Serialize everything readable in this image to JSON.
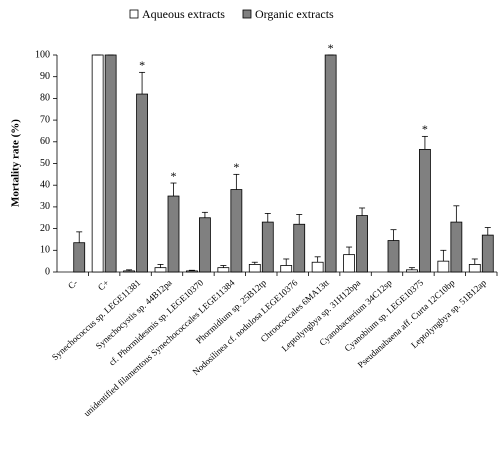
{
  "chart_data": {
    "type": "bar",
    "ylabel": "Mortality rate (%)",
    "categories": [
      "C-",
      "C+",
      "Synechococcus sp. LEGE11381",
      "Synechocystis sp. 44B12pa",
      "cf. Phormidesmis sp. LEGE10370",
      "unidentified filamentous Synechococcales LEGE11384",
      "Phormidium sp. 25B12tp",
      "Nodosilinea cf. nodulosa LEGE10376",
      "Chroococcales 6MA13tt",
      "Leptolyngbya sp. 31H12bpa",
      "Cyanobacterium 34C12sp",
      "Cyanobium sp. LEGE10375",
      "Pseudanabaena aff. Curta 12C10bp",
      "Leptolyngbya sp. 51B12ap"
    ],
    "series": [
      {
        "name": "Aqueous extracts",
        "color": "#ffffff",
        "values": [
          null,
          100,
          0.5,
          2,
          0.5,
          2,
          3.5,
          3,
          4.5,
          8,
          null,
          1,
          5,
          3.5
        ],
        "errors": [
          null,
          0,
          0.5,
          1.5,
          0.3,
          1,
          1,
          3,
          2.5,
          3.5,
          null,
          1,
          5,
          2.5
        ]
      },
      {
        "name": "Organic extracts",
        "color": "#808080",
        "values": [
          13.5,
          100,
          82,
          35,
          25,
          38,
          23,
          22,
          100,
          26,
          14.5,
          56.5,
          23,
          17
        ],
        "errors": [
          5,
          0,
          10,
          6,
          2.5,
          7,
          4,
          4.5,
          0,
          3.5,
          5,
          6,
          7.5,
          3.5
        ],
        "significant": [
          false,
          false,
          true,
          true,
          false,
          true,
          false,
          false,
          true,
          false,
          false,
          true,
          false,
          false
        ]
      }
    ],
    "significance_label": "*",
    "ylim": [
      0,
      100
    ],
    "yticks": [
      0,
      10,
      20,
      30,
      40,
      50,
      60,
      70,
      80,
      90,
      100
    ],
    "legend": "top"
  }
}
